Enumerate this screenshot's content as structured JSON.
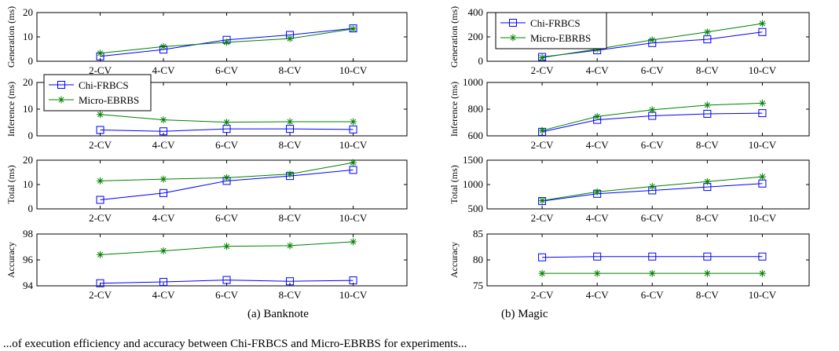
{
  "captions": {
    "left": "(a) Banknote",
    "right": "(b) Magic"
  },
  "footer_text": "...of execution efficiency and accuracy between Chi-FRBCS and Micro-EBRBS for experiments...",
  "chart_data": [
    {
      "type": "line",
      "panel": "Banknote",
      "row": 0,
      "ylabel": "Generation (ms)",
      "ylim": [
        0,
        20
      ],
      "yticks": [
        0,
        10,
        20
      ],
      "categories": [
        "2-CV",
        "4-CV",
        "6-CV",
        "8-CV",
        "10-CV"
      ],
      "series": [
        {
          "name": "Chi-FRBCS",
          "values": [
            2,
            4.8,
            8.8,
            10.8,
            13.5
          ]
        },
        {
          "name": "Micro-EBRBS",
          "values": [
            3.3,
            6,
            7.8,
            9.3,
            13.3
          ]
        }
      ],
      "legend": null
    },
    {
      "type": "line",
      "panel": "Banknote",
      "row": 1,
      "ylabel": "Inference (ms)",
      "ylim": [
        0,
        20
      ],
      "yticks": [
        0,
        10,
        20
      ],
      "categories": [
        "2-CV",
        "4-CV",
        "6-CV",
        "8-CV",
        "10-CV"
      ],
      "series": [
        {
          "name": "Chi-FRBCS",
          "values": [
            2.2,
            1.7,
            2.6,
            2.6,
            2.4
          ]
        },
        {
          "name": "Micro-EBRBS",
          "values": [
            8,
            6,
            5.1,
            5.3,
            5.3
          ]
        }
      ],
      "legend": "top-left"
    },
    {
      "type": "line",
      "panel": "Banknote",
      "row": 2,
      "ylabel": "Total (ms)",
      "ylim": [
        0,
        20
      ],
      "yticks": [
        0,
        10,
        20
      ],
      "categories": [
        "2-CV",
        "4-CV",
        "6-CV",
        "8-CV",
        "10-CV"
      ],
      "series": [
        {
          "name": "Chi-FRBCS",
          "values": [
            3.7,
            6.5,
            11.5,
            13.5,
            16
          ]
        },
        {
          "name": "Micro-EBRBS",
          "values": [
            11.5,
            12.2,
            12.8,
            14.3,
            19
          ]
        }
      ],
      "legend": null
    },
    {
      "type": "line",
      "panel": "Banknote",
      "row": 3,
      "ylabel": "Accuracy",
      "ylim": [
        94,
        98
      ],
      "yticks": [
        94,
        96,
        98
      ],
      "categories": [
        "2-CV",
        "4-CV",
        "6-CV",
        "8-CV",
        "10-CV"
      ],
      "series": [
        {
          "name": "Chi-FRBCS",
          "values": [
            94.2,
            94.3,
            94.45,
            94.35,
            94.42
          ]
        },
        {
          "name": "Micro-EBRBS",
          "values": [
            96.4,
            96.7,
            97.05,
            97.1,
            97.4
          ]
        }
      ],
      "legend": null
    },
    {
      "type": "line",
      "panel": "Magic",
      "row": 0,
      "ylabel": "Generation (ms)",
      "ylim": [
        0,
        400
      ],
      "yticks": [
        0,
        200,
        400
      ],
      "categories": [
        "2-CV",
        "4-CV",
        "6-CV",
        "8-CV",
        "10-CV"
      ],
      "series": [
        {
          "name": "Chi-FRBCS",
          "values": [
            35,
            90,
            150,
            180,
            240
          ]
        },
        {
          "name": "Micro-EBRBS",
          "values": [
            30,
            100,
            175,
            240,
            310
          ]
        }
      ],
      "legend": "top-left"
    },
    {
      "type": "line",
      "panel": "Magic",
      "row": 1,
      "ylabel": "Inference (ms)",
      "ylim": [
        600,
        1000
      ],
      "yticks": [
        600,
        800,
        1000
      ],
      "categories": [
        "2-CV",
        "4-CV",
        "6-CV",
        "8-CV",
        "10-CV"
      ],
      "series": [
        {
          "name": "Chi-FRBCS",
          "values": [
            630,
            720,
            750,
            765,
            770
          ]
        },
        {
          "name": "Micro-EBRBS",
          "values": [
            640,
            745,
            795,
            830,
            845
          ]
        }
      ],
      "legend": null
    },
    {
      "type": "line",
      "panel": "Magic",
      "row": 2,
      "ylabel": "Total (ms)",
      "ylim": [
        500,
        1500
      ],
      "yticks": [
        500,
        1000,
        1500
      ],
      "categories": [
        "2-CV",
        "4-CV",
        "6-CV",
        "8-CV",
        "10-CV"
      ],
      "series": [
        {
          "name": "Chi-FRBCS",
          "values": [
            660,
            810,
            880,
            950,
            1020
          ]
        },
        {
          "name": "Micro-EBRBS",
          "values": [
            670,
            850,
            960,
            1060,
            1160
          ]
        }
      ],
      "legend": null
    },
    {
      "type": "line",
      "panel": "Magic",
      "row": 3,
      "ylabel": "Accuracy",
      "ylim": [
        75,
        85
      ],
      "yticks": [
        75,
        80,
        85
      ],
      "categories": [
        "2-CV",
        "4-CV",
        "6-CV",
        "8-CV",
        "10-CV"
      ],
      "series": [
        {
          "name": "Chi-FRBCS",
          "values": [
            80.5,
            80.65,
            80.65,
            80.65,
            80.65
          ]
        },
        {
          "name": "Micro-EBRBS",
          "values": [
            77.4,
            77.4,
            77.4,
            77.4,
            77.4
          ]
        }
      ],
      "legend": null
    }
  ],
  "colors": {
    "chi": "#0000ff",
    "micro": "#008000",
    "axis": "#000000"
  }
}
